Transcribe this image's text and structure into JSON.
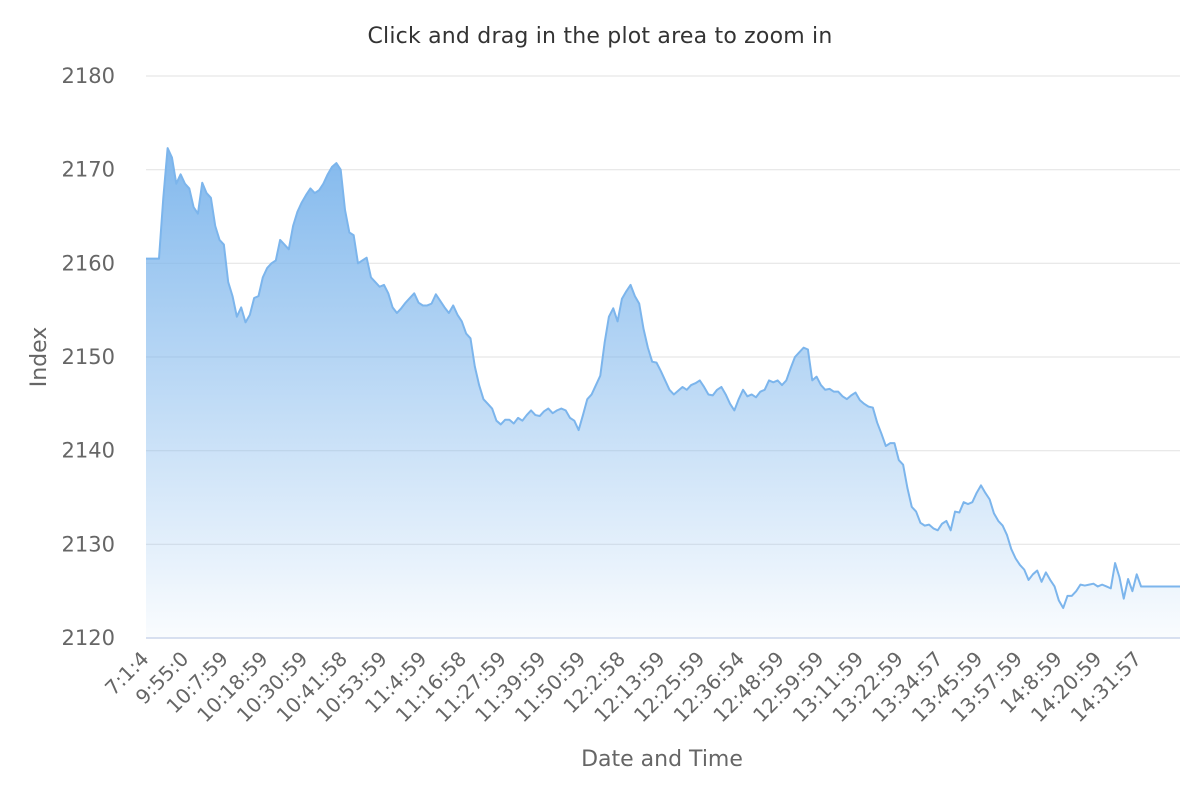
{
  "chart_data": {
    "type": "area",
    "title": "Click and drag in the plot area to zoom in",
    "xlabel": "Date and Time",
    "ylabel": "Index",
    "ylim": [
      2120,
      2180
    ],
    "yticks": [
      2120,
      2130,
      2140,
      2150,
      2160,
      2170,
      2180
    ],
    "grid": true,
    "legend": "none",
    "x_tick_labels": [
      "7:1:4",
      "9:55:0",
      "10:7:59",
      "10:18:59",
      "10:30:59",
      "10:41:58",
      "10:53:59",
      "11:4:59",
      "11:16:58",
      "11:27:59",
      "11:39:59",
      "11:50:59",
      "12:2:58",
      "12:13:59",
      "12:25:59",
      "12:36:54",
      "12:48:59",
      "12:59:59",
      "13:11:59",
      "13:22:59",
      "13:34:57",
      "13:45:59",
      "13:57:59",
      "14:8:59",
      "14:20:59",
      "14:31:57"
    ],
    "series": [
      {
        "values": [
          2160.5,
          2160.5,
          2160.5,
          2160.5,
          2167,
          2172.3,
          2171.3,
          2168.5,
          2169.5,
          2168.5,
          2168,
          2166,
          2165.3,
          2168.6,
          2167.5,
          2167,
          2164,
          2162.5,
          2162,
          2158,
          2156.5,
          2154.3,
          2155.3,
          2153.7,
          2154.5,
          2156.3,
          2156.5,
          2158.5,
          2159.5,
          2160,
          2160.3,
          2162.5,
          2162,
          2161.5,
          2164,
          2165.5,
          2166.5,
          2167.3,
          2168,
          2167.5,
          2167.8,
          2168.5,
          2169.5,
          2170.3,
          2170.7,
          2170,
          2165.7,
          2163.3,
          2163,
          2160,
          2160.3,
          2160.6,
          2158.5,
          2158,
          2157.5,
          2157.7,
          2156.8,
          2155.3,
          2154.7,
          2155.2,
          2155.8,
          2156.3,
          2156.8,
          2155.8,
          2155.5,
          2155.5,
          2155.7,
          2156.7,
          2156,
          2155.3,
          2154.7,
          2155.5,
          2154.5,
          2153.8,
          2152.5,
          2152,
          2149,
          2147,
          2145.5,
          2145,
          2144.5,
          2143.2,
          2142.8,
          2143.3,
          2143.3,
          2142.9,
          2143.5,
          2143.2,
          2143.8,
          2144.3,
          2143.8,
          2143.7,
          2144.2,
          2144.5,
          2144,
          2144.3,
          2144.5,
          2144.3,
          2143.5,
          2143.2,
          2142.2,
          2143.8,
          2145.5,
          2146,
          2147,
          2148,
          2151.5,
          2154.3,
          2155.2,
          2153.8,
          2156.2,
          2157,
          2157.7,
          2156.5,
          2155.7,
          2153,
          2151,
          2149.5,
          2149.4,
          2148.5,
          2147.5,
          2146.5,
          2146,
          2146.4,
          2146.8,
          2146.5,
          2147,
          2147.2,
          2147.5,
          2146.8,
          2146,
          2145.9,
          2146.5,
          2146.8,
          2146,
          2145,
          2144.3,
          2145.5,
          2146.5,
          2145.8,
          2146,
          2145.7,
          2146.3,
          2146.5,
          2147.5,
          2147.3,
          2147.5,
          2147,
          2147.5,
          2148.8,
          2150,
          2150.5,
          2151,
          2150.8,
          2147.5,
          2147.9,
          2147,
          2146.5,
          2146.6,
          2146.3,
          2146.3,
          2145.8,
          2145.5,
          2145.9,
          2146.2,
          2145.4,
          2145,
          2144.7,
          2144.6,
          2143,
          2141.8,
          2140.5,
          2140.8,
          2140.8,
          2139,
          2138.5,
          2136,
          2134,
          2133.5,
          2132.3,
          2132,
          2132.1,
          2131.7,
          2131.5,
          2132.2,
          2132.5,
          2131.5,
          2133.5,
          2133.4,
          2134.5,
          2134.3,
          2134.5,
          2135.5,
          2136.3,
          2135.5,
          2134.8,
          2133.3,
          2132.5,
          2132,
          2131,
          2129.5,
          2128.5,
          2127.8,
          2127.3,
          2126.2,
          2126.8,
          2127.2,
          2126,
          2127,
          2126.2,
          2125.5,
          2124,
          2123.2,
          2124.5,
          2124.5,
          2125,
          2125.7,
          2125.6,
          2125.7,
          2125.8,
          2125.5,
          2125.7,
          2125.5,
          2125.3,
          2128,
          2126.5,
          2124.2,
          2126.3,
          2125,
          2126.8,
          2125.5,
          2125.5,
          2125.5,
          2125.5,
          2125.5,
          2125.5,
          2125.5,
          2125.5,
          2125.5,
          2125.5
        ]
      }
    ]
  },
  "colors": {
    "line": "#7cb5ec",
    "area_top": "#7cb5ec",
    "grid": "#e6e6e6",
    "axis_line": "#ccd6eb",
    "label": "#666666",
    "title": "#333333"
  }
}
